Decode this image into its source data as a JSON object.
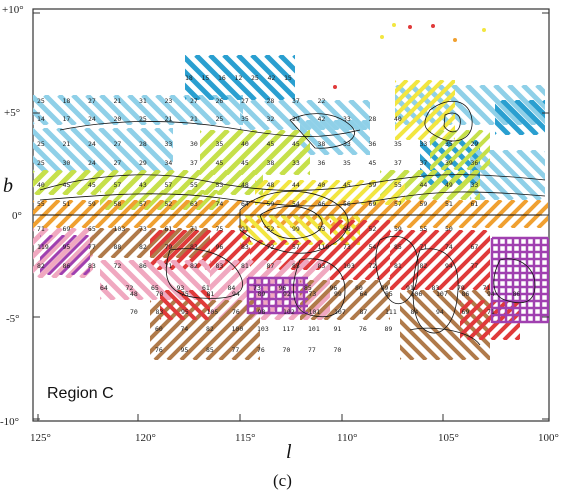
{
  "figure": {
    "panel_label": "Region C",
    "caption": "(c)",
    "x_axis_label": "l",
    "y_axis_label": "b"
  },
  "chart_data": {
    "type": "heatmap",
    "x_ticks": [
      "125°",
      "120°",
      "115°",
      "110°",
      "105°",
      "100°"
    ],
    "y_ticks": [
      "+10°",
      "+5°",
      "0°",
      "-5°",
      "-10°"
    ],
    "xlim": [
      125.5,
      100
    ],
    "ylim": [
      -10,
      10
    ],
    "colors": {
      "light_blue": "#8fd0e8",
      "blue": "#2a9fd0",
      "yellow_green": "#c6e04a",
      "yellow": "#f2e640",
      "orange": "#f0a030",
      "red": "#e03a3a",
      "pink": "#f0a8c0",
      "brown": "#b07a4a",
      "purple": "#a040b0"
    },
    "cell_labels": {
      "row_p6": [
        "18",
        "15",
        "16",
        "12",
        "25",
        "42",
        "15"
      ],
      "row_p5": [
        "25",
        "18",
        "27",
        "21",
        "31",
        "23",
        "27",
        "26",
        "27",
        "28",
        "37",
        "22"
      ],
      "row_p4": [
        "14",
        "17",
        "24",
        "20",
        "25",
        "21",
        "21",
        "25",
        "35",
        "32",
        "29",
        "42",
        "33",
        "28",
        "40"
      ],
      "row_p3": [
        "25",
        "21",
        "24",
        "27",
        "28",
        "33",
        "30",
        "35",
        "40",
        "45",
        "45",
        "38",
        "33",
        "36",
        "35",
        "33",
        "35",
        "29"
      ],
      "row_p2": [
        "25",
        "30",
        "24",
        "27",
        "29",
        "34",
        "37",
        "45",
        "45",
        "38",
        "33",
        "36",
        "35",
        "45",
        "37",
        "37",
        "39",
        "36"
      ],
      "row_p1": [
        "40",
        "45",
        "45",
        "57",
        "43",
        "57",
        "55",
        "53",
        "48",
        "48",
        "44",
        "40",
        "45",
        "59",
        "55",
        "44",
        "49",
        "33"
      ],
      "row_0": [
        "55",
        "51",
        "59",
        "58",
        "57",
        "52",
        "63",
        "74",
        "64",
        "59",
        "54",
        "46",
        "56",
        "69",
        "57",
        "59",
        "51",
        "61"
      ],
      "row_m1": [
        "71",
        "69",
        "65",
        "103",
        "73",
        "61",
        "71",
        "75",
        "91",
        "52",
        "99",
        "53",
        "68",
        "52",
        "59",
        "55",
        "50"
      ],
      "row_m2": [
        "119",
        "95",
        "77",
        "88",
        "82",
        "79",
        "83",
        "96",
        "83",
        "72",
        "57",
        "119",
        "73",
        "54",
        "85",
        "71",
        "74",
        "67"
      ],
      "row_m3": [
        "82",
        "86",
        "83",
        "72",
        "86",
        "71",
        "82",
        "83",
        "81",
        "87",
        "85",
        "83",
        "103",
        "72",
        "81",
        "82",
        "94",
        "77"
      ],
      "row_m4": [
        "64",
        "72",
        "65",
        "93",
        "61",
        "84",
        "73",
        "96",
        "85",
        "96",
        "80",
        "89",
        "91",
        "83",
        "79",
        "71"
      ],
      "row_m5": [
        "48",
        "70",
        "75",
        "81",
        "94",
        "89",
        "92",
        "73",
        "99",
        "64",
        "85",
        "106",
        "107",
        "86",
        "94",
        "86"
      ],
      "row_m6": [
        "70",
        "83",
        "95",
        "105",
        "76",
        "98",
        "102",
        "101",
        "107",
        "87",
        "111",
        "84",
        "94",
        "69",
        "71"
      ],
      "row_m7": [
        "60",
        "74",
        "82",
        "100",
        "103",
        "117",
        "101",
        "91",
        "76",
        "89"
      ],
      "row_m8": [
        "76",
        "95",
        "85",
        "77",
        "76",
        "70",
        "77",
        "70"
      ]
    }
  }
}
